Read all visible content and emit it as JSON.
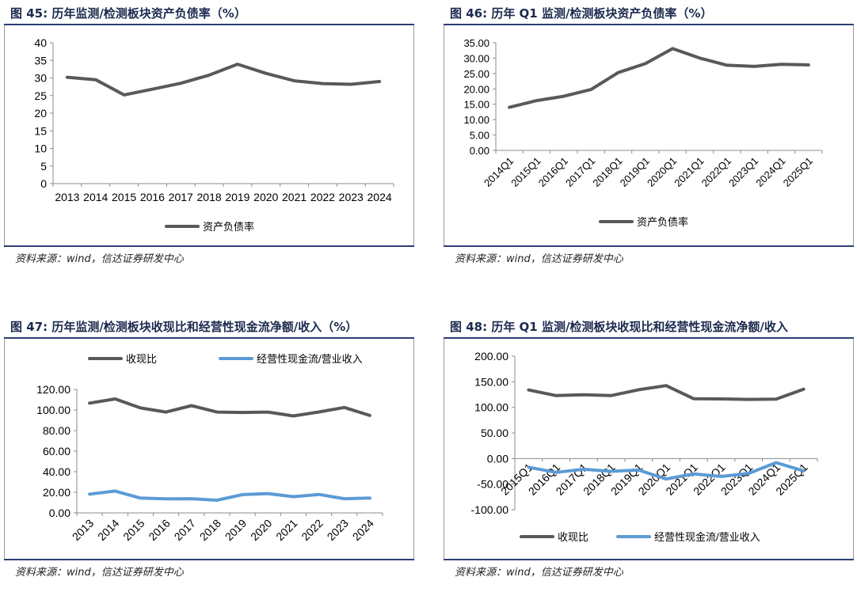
{
  "panels": [
    {
      "title": "图 45: 历年监测/检测板块资产负债率（%）",
      "source": "资料来源：wind，信达证券研发中心"
    },
    {
      "title": "图 46: 历年 Q1 监测/检测板块资产负债率（%）",
      "source": "资料来源：wind，信达证券研发中心"
    },
    {
      "title": "图 47: 历年监测/检测板块收现比和经营性现金流净额/收入（%）",
      "source": "资料来源：wind，信达证券研发中心"
    },
    {
      "title": "图 48: 历年 Q1 监测/检测板块收现比和经营性现金流净额/收入",
      "source": "资料来源：wind，信达证券研发中心"
    }
  ],
  "chart_data": [
    {
      "type": "line",
      "categories": [
        "2013",
        "2014",
        "2015",
        "2016",
        "2017",
        "2018",
        "2019",
        "2020",
        "2021",
        "2022",
        "2023",
        "2024"
      ],
      "series": [
        {
          "name": "资产负债率",
          "color": "#595959",
          "values": [
            30.2,
            29.5,
            25.2,
            26.8,
            28.5,
            30.8,
            33.9,
            31.3,
            29.2,
            28.4,
            28.2,
            29.0
          ]
        }
      ],
      "ylim": [
        0,
        40
      ],
      "yticks": [
        "0",
        "5",
        "10",
        "15",
        "20",
        "25",
        "30",
        "35",
        "40"
      ],
      "xlabel_rotation": 0,
      "legend_position": "bottom",
      "grid": false
    },
    {
      "type": "line",
      "categories": [
        "2014Q1",
        "2015Q1",
        "2016Q1",
        "2017Q1",
        "2018Q1",
        "2019Q1",
        "2020Q1",
        "2021Q1",
        "2022Q1",
        "2023Q1",
        "2024Q1",
        "2025Q1"
      ],
      "series": [
        {
          "name": "资产负债率",
          "color": "#595959",
          "values": [
            14.0,
            16.2,
            17.6,
            19.8,
            25.3,
            28.2,
            33.1,
            30.0,
            27.7,
            27.3,
            28.0,
            27.8
          ]
        }
      ],
      "ylim": [
        0,
        35
      ],
      "yticks": [
        "0.00",
        "5.00",
        "10.00",
        "15.00",
        "20.00",
        "25.00",
        "30.00",
        "35.00"
      ],
      "xlabel_rotation": -45,
      "legend_position": "bottom",
      "grid": false
    },
    {
      "type": "line",
      "categories": [
        "2013",
        "2014",
        "2015",
        "2016",
        "2017",
        "2018",
        "2019",
        "2020",
        "2021",
        "2022",
        "2023",
        "2024"
      ],
      "series": [
        {
          "name": "收现比",
          "color": "#595959",
          "values": [
            106.7,
            110.8,
            102.0,
            98.0,
            104.2,
            98.0,
            97.6,
            98.0,
            94.2,
            98.1,
            102.5,
            94.7
          ]
        },
        {
          "name": "经营性现金流/营业收入",
          "color": "#5b9bd5",
          "values": [
            18.2,
            21.2,
            14.4,
            13.7,
            13.8,
            12.3,
            17.8,
            18.8,
            15.8,
            17.9,
            13.8,
            14.4
          ]
        }
      ],
      "ylim": [
        0,
        120
      ],
      "yticks": [
        "0.00",
        "20.00",
        "40.00",
        "60.00",
        "80.00",
        "100.00",
        "120.00"
      ],
      "xlabel_rotation": -45,
      "legend_position": "top",
      "grid": false
    },
    {
      "type": "line",
      "categories": [
        "2015Q1",
        "2016Q1",
        "2017Q1",
        "2018Q1",
        "2019Q1",
        "2020Q1",
        "2021Q1",
        "2022Q1",
        "2023Q1",
        "2024Q1",
        "2025Q1"
      ],
      "series": [
        {
          "name": "收现比",
          "color": "#595959",
          "values": [
            134.0,
            123.0,
            124.5,
            123.0,
            134.5,
            142.5,
            117.0,
            116.5,
            115.5,
            116.0,
            135.5
          ]
        },
        {
          "name": "经营性现金流/营业收入",
          "color": "#5b9bd5",
          "values": [
            -17.0,
            -27.0,
            -21.0,
            -25.0,
            -22.5,
            -40.0,
            -30.0,
            -35.0,
            -29.0,
            -8.0,
            -24.0
          ]
        }
      ],
      "ylim": [
        -100,
        200
      ],
      "yticks": [
        "-100.00",
        "-50.00",
        "0.00",
        "50.00",
        "100.00",
        "150.00",
        "200.00"
      ],
      "xlabel_rotation": -45,
      "xlabels_at_zero": true,
      "legend_position": "bottom",
      "grid": false
    }
  ]
}
